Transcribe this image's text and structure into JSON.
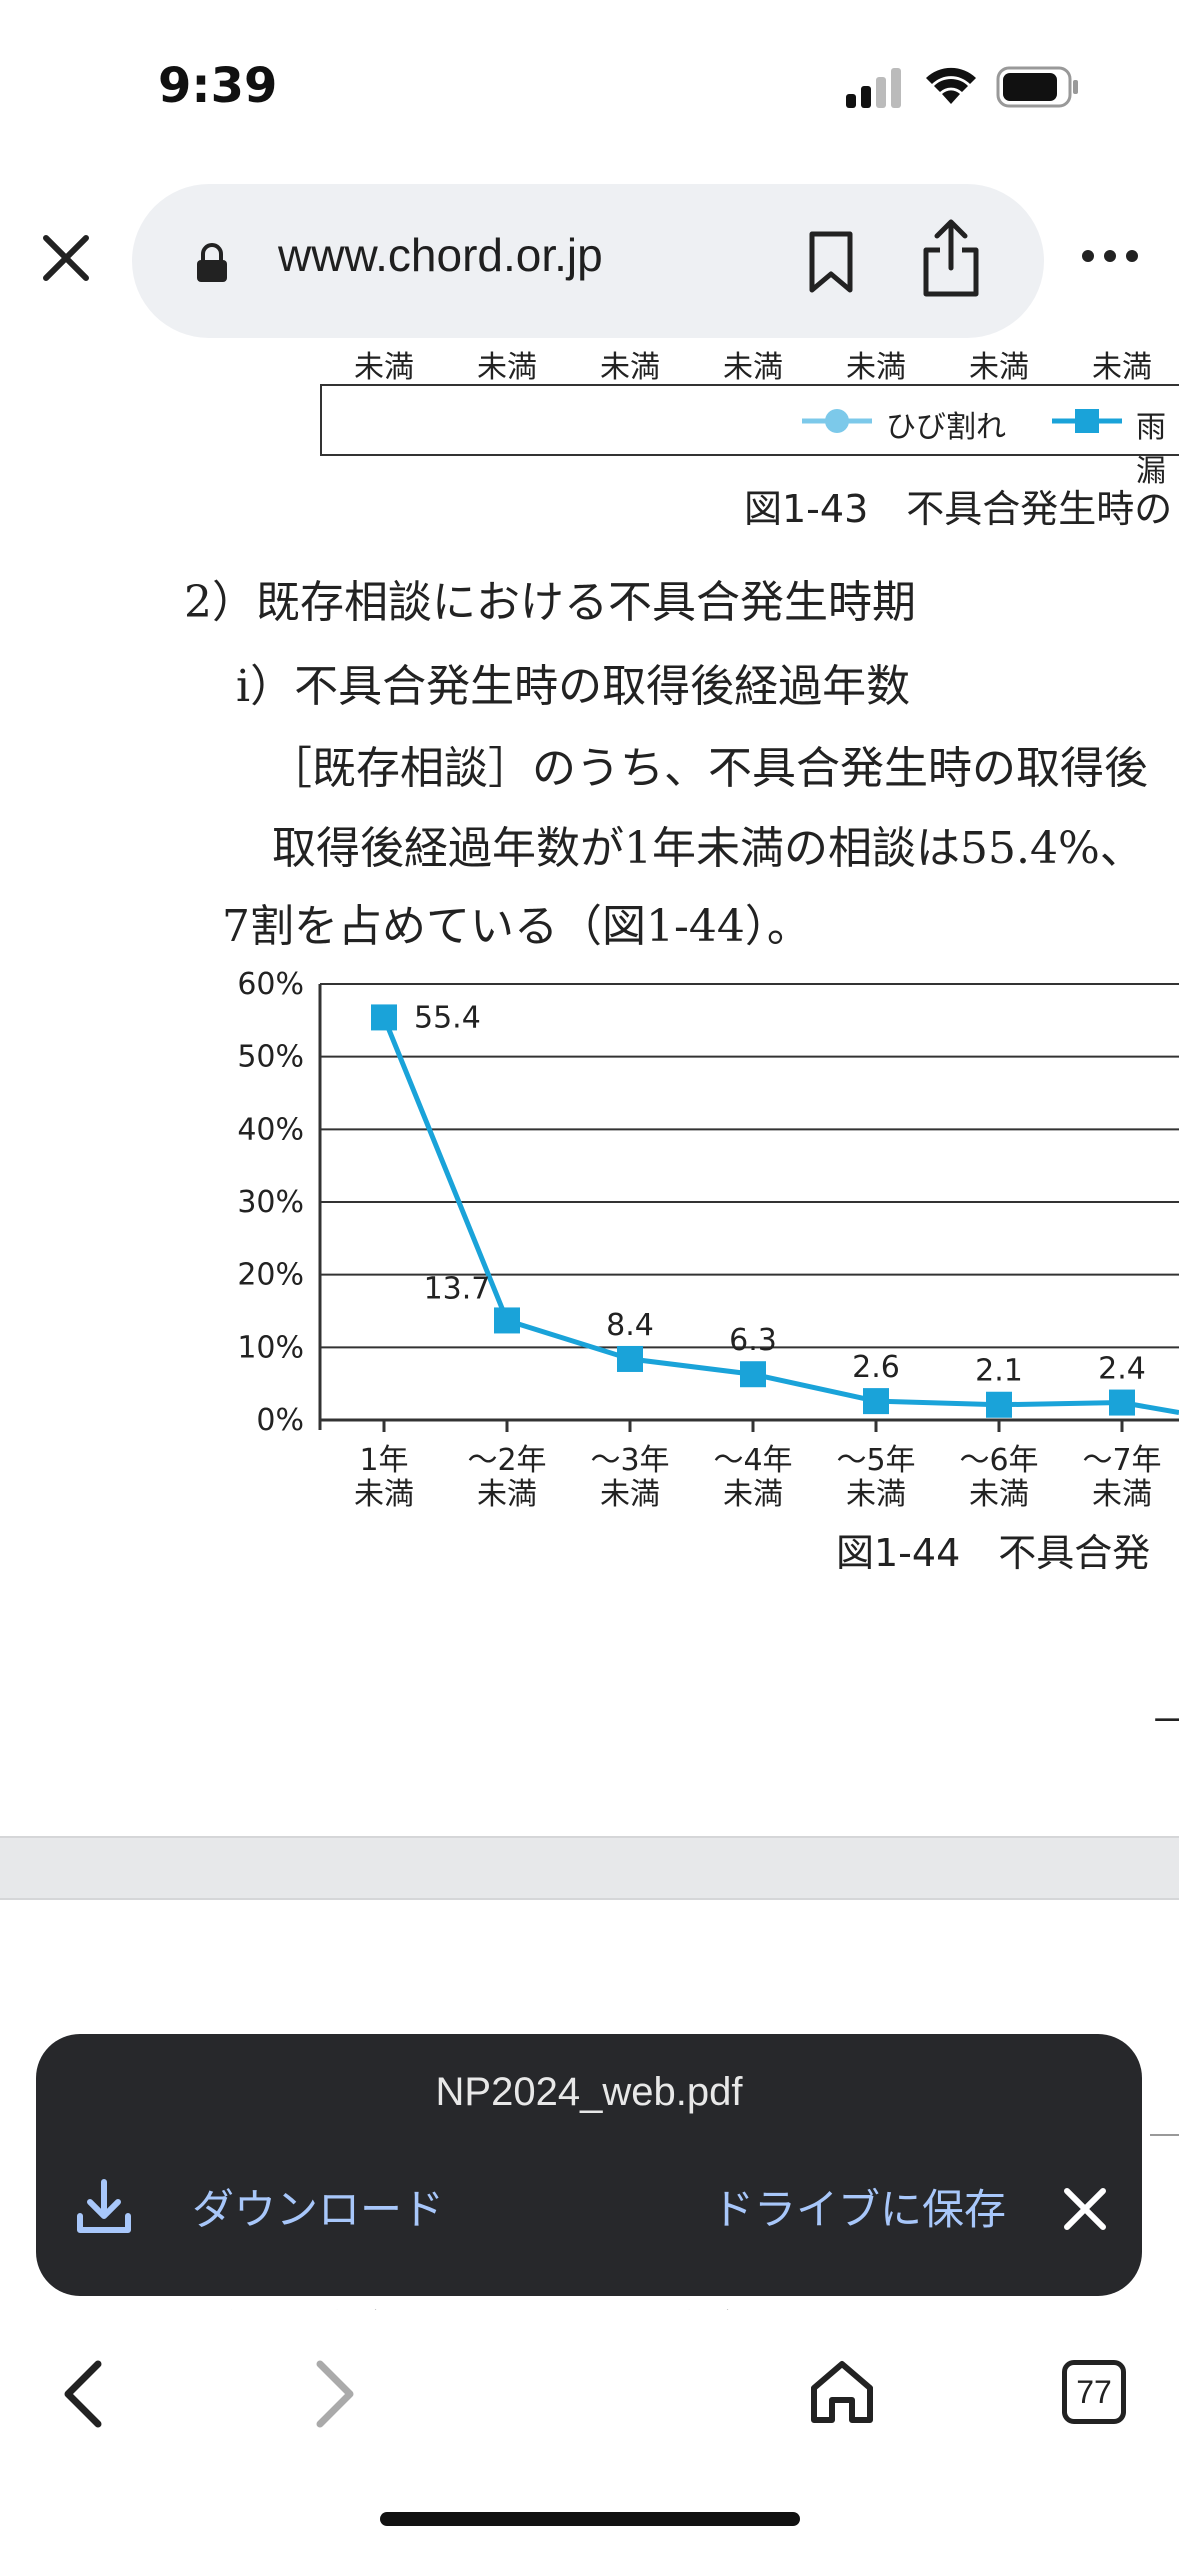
{
  "status_bar": {
    "time": "9:39"
  },
  "browser": {
    "url": "www.chord.or.jp",
    "close_icon": "close-icon",
    "lock_icon": "lock-icon",
    "bookmark_icon": "bookmark-icon",
    "share_icon": "share-icon",
    "more_icon": "more-horizontal-icon"
  },
  "document": {
    "top_ticks": [
      "未満",
      "未満",
      "未満",
      "未満",
      "未満",
      "未満",
      "未満"
    ],
    "legend_items": [
      "ひび割れ",
      "雨漏"
    ],
    "fig43_caption": "図1-43　不具合発生時の",
    "heading2": "2）既存相談における不具合発生時期",
    "heading_i": "ⅰ）不具合発生時の取得後経過年数",
    "para1": "［既存相談］のうち、不具合発生時の取得後",
    "para2": "取得後経過年数が1年未満の相談は55.4%、",
    "para3": "7割を占めている（図1-44）。",
    "fig44_caption": "図1-44　不具合発",
    "dash": "－"
  },
  "chart_data": {
    "type": "line",
    "categories": [
      "1年\n未満",
      "～2年\n未満",
      "～3年\n未満",
      "～4年\n未満",
      "～5年\n未満",
      "～6年\n未満",
      "～7年\n未満"
    ],
    "x_labels_top": [
      "1年",
      "～2年",
      "～3年",
      "～4年",
      "～5年",
      "～6年",
      "～7年"
    ],
    "x_labels_bottom": [
      "未満",
      "未満",
      "未満",
      "未満",
      "未満",
      "未満",
      "未満"
    ],
    "values": [
      55.4,
      13.7,
      8.4,
      6.3,
      2.6,
      2.1,
      2.4
    ],
    "value_labels": [
      "55.4",
      "13.7",
      "8.4",
      "6.3",
      "2.6",
      "2.1",
      "2.4"
    ],
    "y_ticks": [
      "0%",
      "10%",
      "20%",
      "30%",
      "40%",
      "50%",
      "60%"
    ],
    "ylim": [
      0,
      60
    ],
    "grid": true,
    "color": "#1aa3d9"
  },
  "snackbar": {
    "filename": "NP2024_web.pdf",
    "download_label": "ダウンロード",
    "save_to_drive_label": "ドライブに保存"
  },
  "bottom_bar": {
    "tab_count": "77"
  },
  "colors": {
    "accent_blue": "#a8c7fa",
    "chart_blue": "#1aa3d9",
    "snackbar_bg": "#27282b"
  }
}
